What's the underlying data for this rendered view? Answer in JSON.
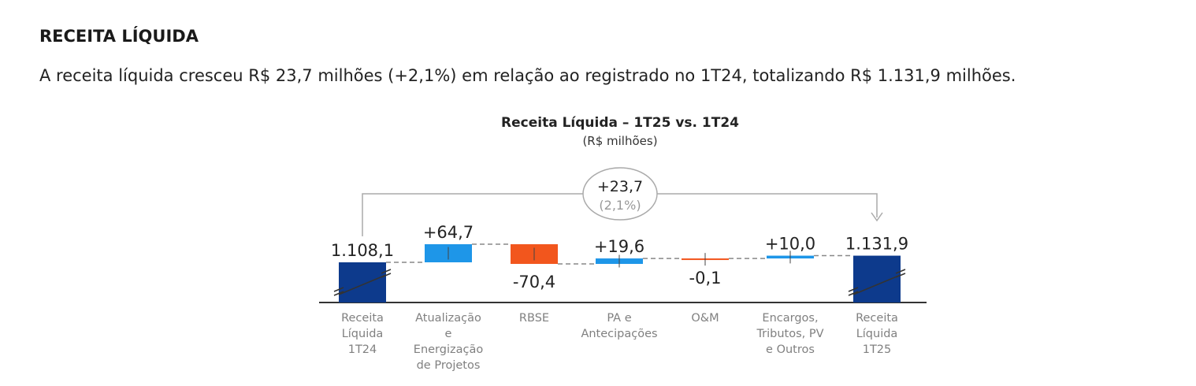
{
  "section": {
    "heading": "RECEITA LÍQUIDA",
    "paragraph": "A receita líquida cresceu R$ 23,7 milhões (+2,1%) em relação ao registrado no 1T24, totalizando R$ 1.131,9 milhões."
  },
  "chart_data": {
    "type": "waterfall",
    "title": "Receita Líquida – 1T25 vs. 1T24",
    "subtitle": "(R$ milhões)",
    "categories": [
      [
        "Receita",
        "Líquida",
        "1T24"
      ],
      [
        "Atualização",
        "e",
        "Energização",
        "de Projetos"
      ],
      [
        "RBSE"
      ],
      [
        "PA e",
        "Antecipações"
      ],
      [
        "O&M"
      ],
      [
        "Encargos,",
        "Tributos, PV",
        "e Outros"
      ],
      [
        "Receita",
        "Líquida",
        "1T25"
      ]
    ],
    "values": [
      1108.1,
      64.7,
      -70.4,
      19.6,
      -0.1,
      10.0,
      1131.9
    ],
    "kinds": [
      "total",
      "delta",
      "delta",
      "delta",
      "delta",
      "delta",
      "total"
    ],
    "labels": [
      "1.108,1",
      "+64,7",
      "-70,4",
      "+19,6",
      "-0,1",
      "+10,0",
      "1.131,9"
    ],
    "variation": {
      "value": "+23,7",
      "percent": "(2,1%)"
    },
    "axis_break": true,
    "colors": {
      "total": "#0d3a8c",
      "increase": "#1e96e8",
      "decrease": "#f2561d",
      "label": "#808080"
    }
  }
}
